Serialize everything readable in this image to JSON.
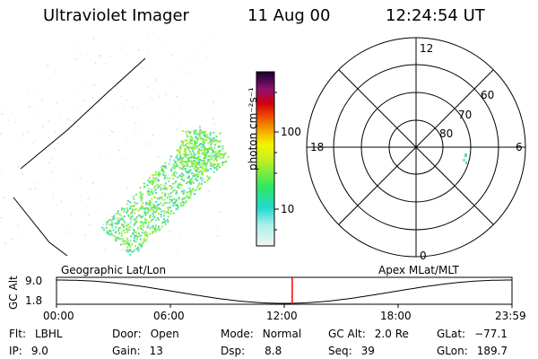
{
  "header": {
    "instrument": "Ultraviolet Imager",
    "date": "11 Aug 00",
    "time": "12:24:54 UT"
  },
  "colorbar": {
    "unit_label": "photon cm⁻²s⁻¹",
    "ticks": [
      "100",
      "10"
    ]
  },
  "polar_plot": {
    "mlt_labels": [
      "12",
      "18",
      "6",
      "0"
    ],
    "lat_labels": [
      "60",
      "70",
      "80"
    ]
  },
  "timeline": {
    "left_label": "Geographic Lat/Lon",
    "right_label": "Apex MLat/MLT",
    "axis_title": "GC Alt",
    "y_ticks": [
      "9.0",
      "1.8"
    ],
    "x_ticks": [
      "00:00",
      "06:00",
      "12:00",
      "18:00",
      "23:59"
    ],
    "current_time_hours": 12.42,
    "marker_color": "#ff0000"
  },
  "info": {
    "flt": {
      "label": "Flt:",
      "value": "LBHL"
    },
    "ip": {
      "label": "IP:",
      "value": "9.0"
    },
    "door": {
      "label": "Door:",
      "value": "Open"
    },
    "gain": {
      "label": "Gain:",
      "value": "13"
    },
    "mode": {
      "label": "Mode:",
      "value": "Normal"
    },
    "dsp": {
      "label": "Dsp:",
      "value": "8.8"
    },
    "gcalt": {
      "label": "GC Alt:",
      "value": "2.0 Re"
    },
    "seq": {
      "label": "Seq:",
      "value": "39"
    },
    "glat": {
      "label": "GLat:",
      "value": "−77.1"
    },
    "glon": {
      "label": "GLon:",
      "value": "189.7"
    }
  }
}
